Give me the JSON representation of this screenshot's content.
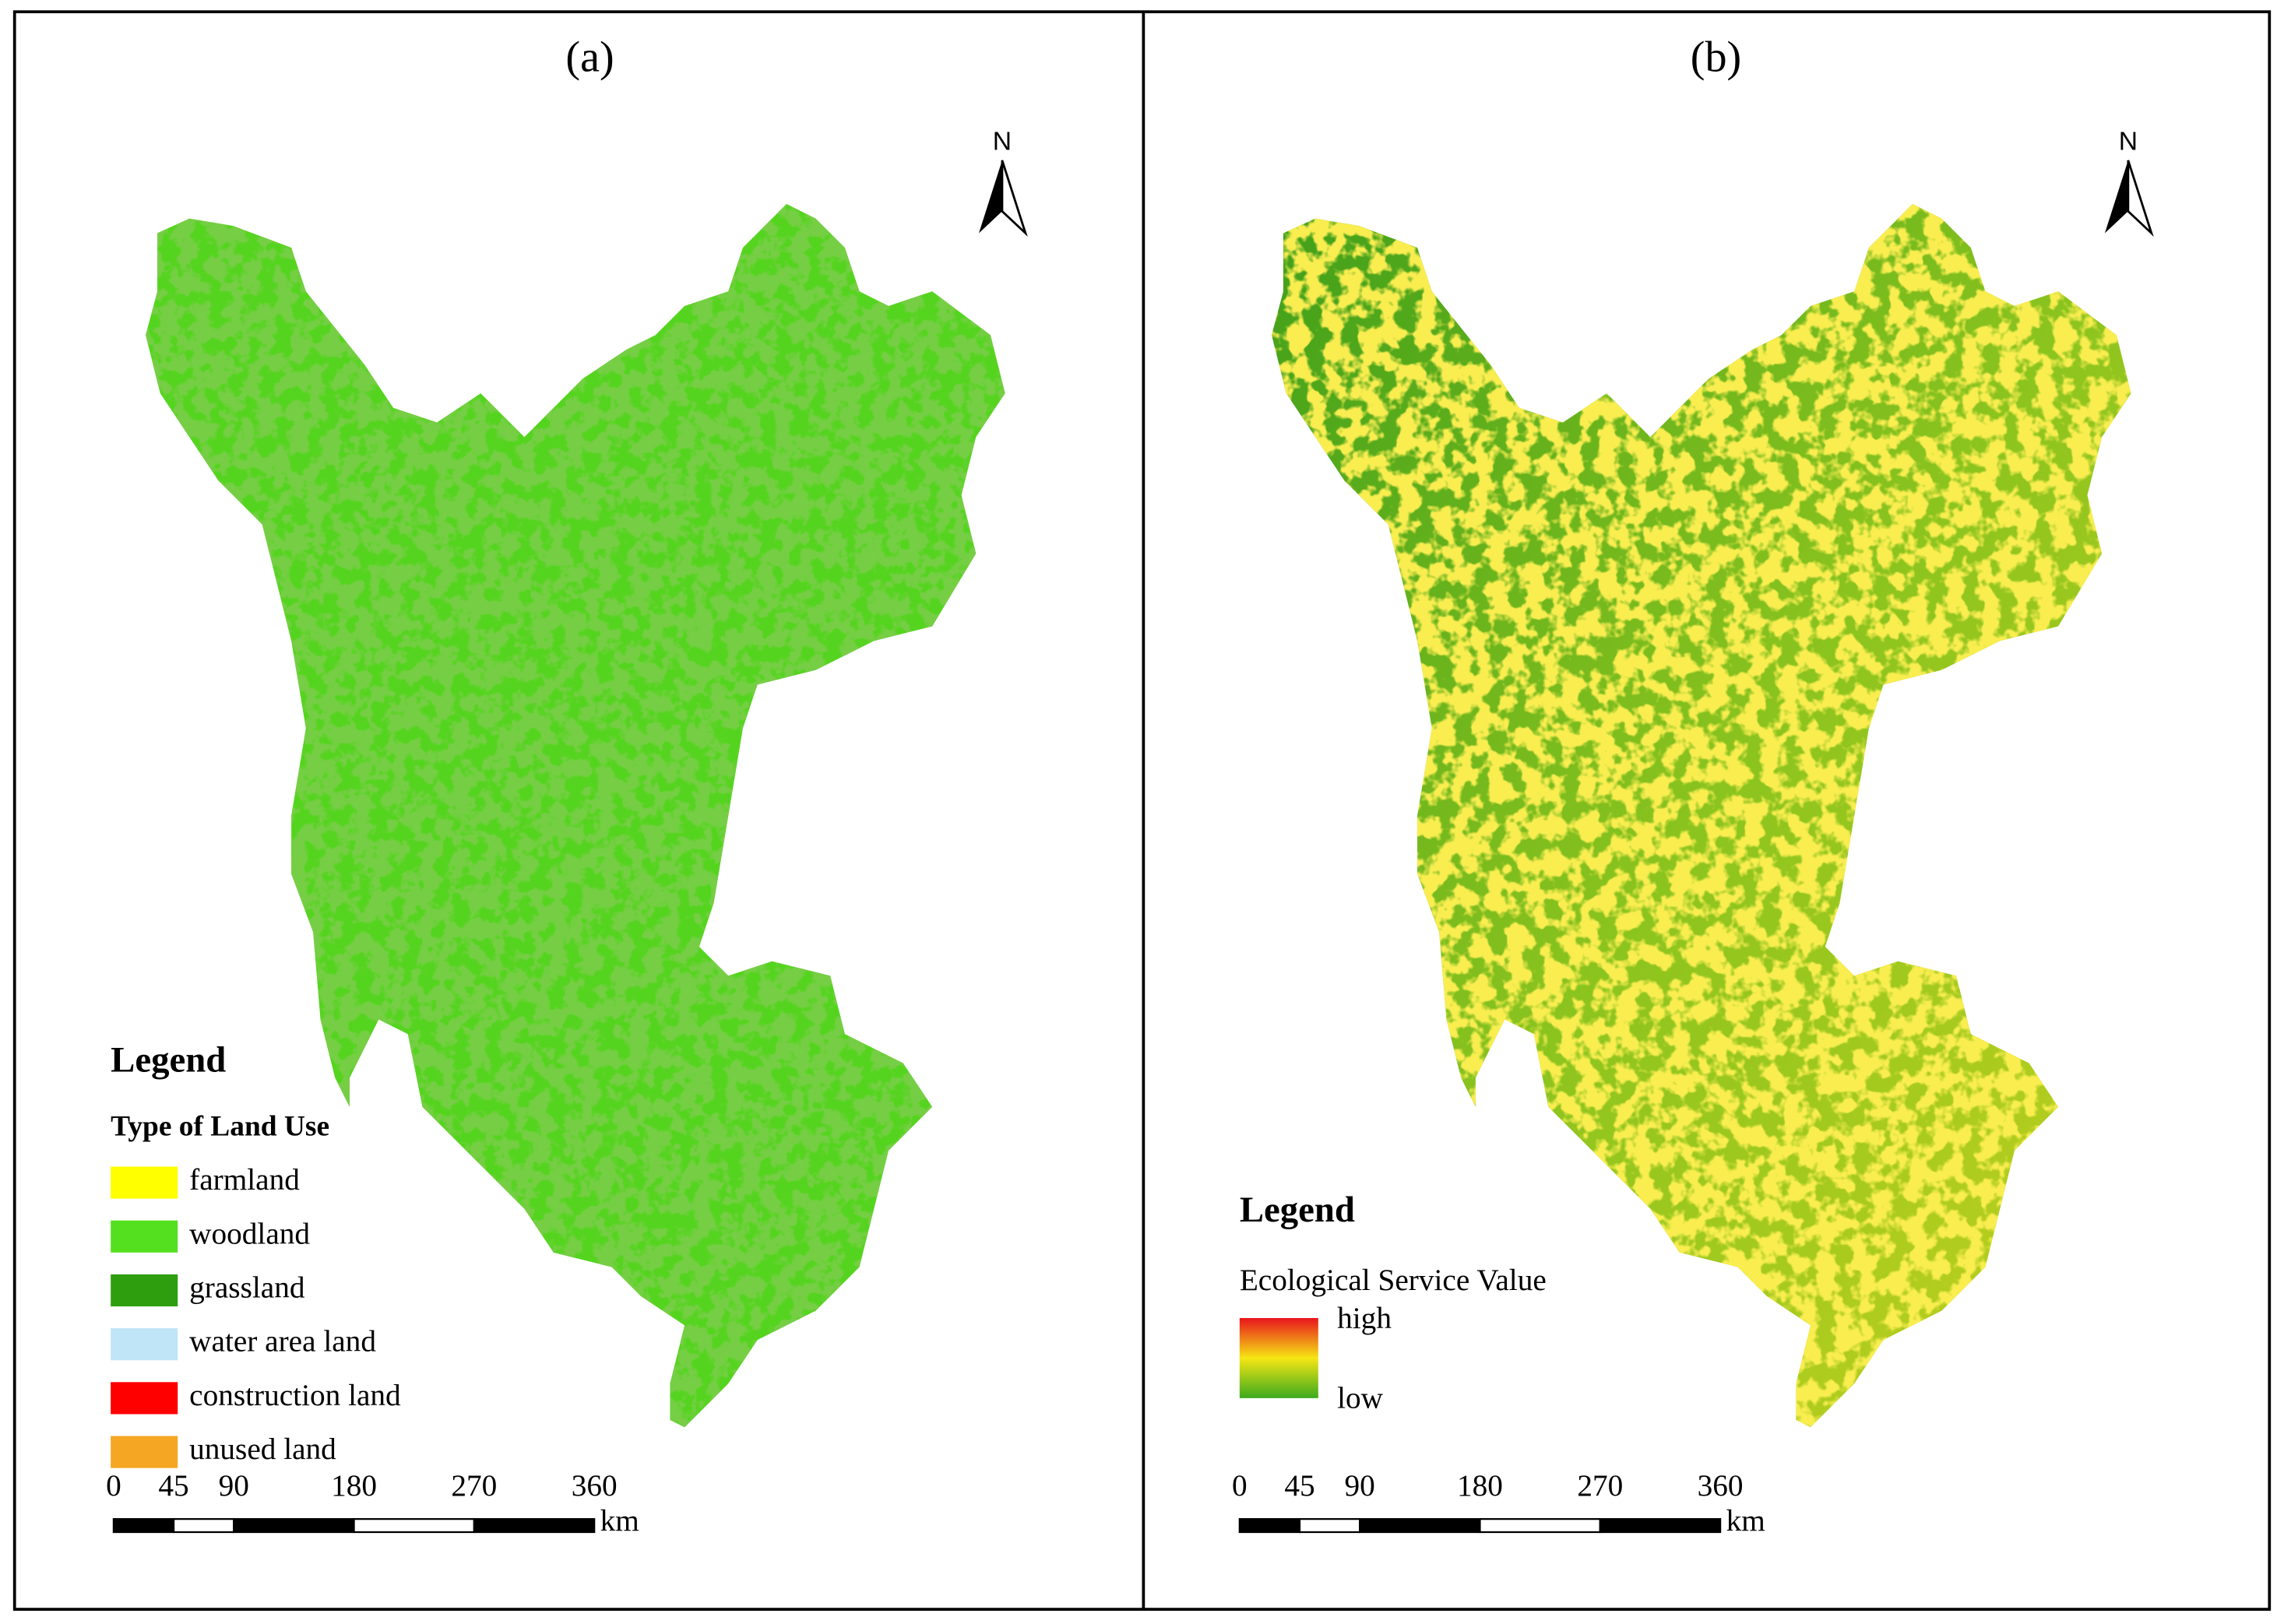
{
  "panels": [
    {
      "label": "(a)",
      "north": "N",
      "legend": {
        "title": "Legend",
        "subtitle": "Type of Land Use",
        "items": [
          {
            "name": "farmland",
            "color": "#ffff00"
          },
          {
            "name": "woodland",
            "color": "#55e01f"
          },
          {
            "name": "grassland",
            "color": "#2e9e0f"
          },
          {
            "name": "water area land",
            "color": "#bfe5f7"
          },
          {
            "name": "construction land",
            "color": "#ff0000"
          },
          {
            "name": "unused land",
            "color": "#f5a623"
          }
        ]
      },
      "scale_bar": {
        "ticks": [
          0,
          45,
          90,
          180,
          270,
          360
        ],
        "unit": "km"
      }
    },
    {
      "label": "(b)",
      "north": "N",
      "legend": {
        "title": "Legend",
        "subtitle": "Ecological Service Value",
        "high": "high",
        "low": "low",
        "colors": [
          "#e8141c",
          "#f5e614",
          "#3caa1e"
        ]
      },
      "scale_bar": {
        "ticks": [
          0,
          45,
          90,
          180,
          270,
          360
        ],
        "unit": "km"
      }
    }
  ]
}
